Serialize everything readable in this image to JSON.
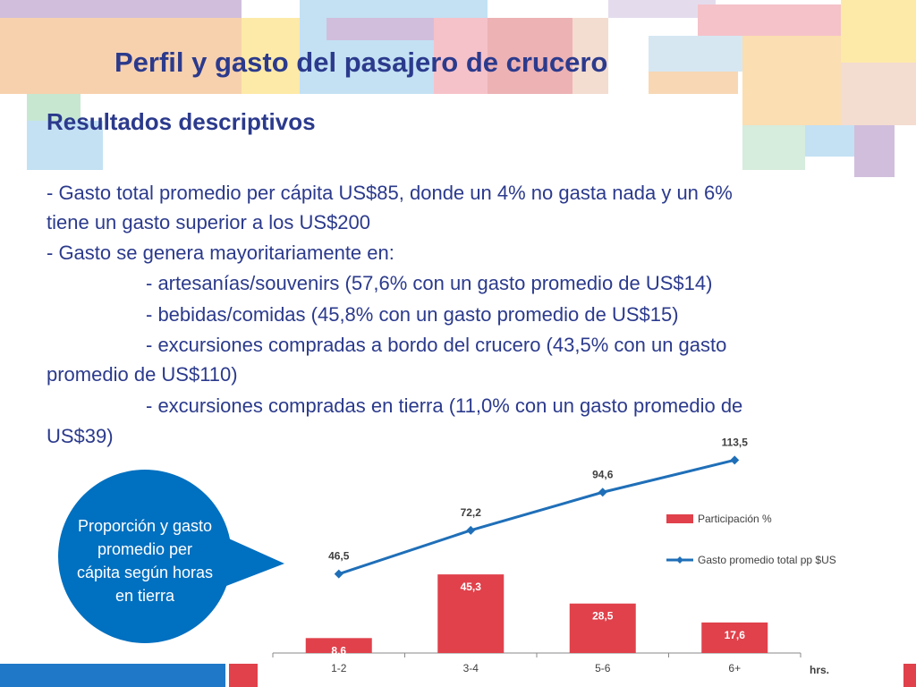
{
  "header": {
    "title": "Perfil y gasto del pasajero de crucero",
    "subtitle": "Resultados descriptivos"
  },
  "body": {
    "lines": [
      "- Gasto total promedio per cápita US$85, donde un 4% no gasta nada y un 6%",
      "tiene un gasto superior a los US$200",
      "- Gasto se genera mayoritariamente en:",
      "- artesanías/souvenirs (57,6% con un gasto promedio de US$14)",
      "- bebidas/comidas (45,8% con un gasto promedio de US$15)",
      "- excursiones compradas a bordo del crucero (43,5% con un gasto",
      "promedio de US$110)",
      "- excursiones compradas en tierra (11,0% con un gasto promedio de",
      "US$39)"
    ]
  },
  "callout": {
    "lines": [
      "Proporción y gasto",
      "promedio per",
      "cápita según horas",
      "en tierra"
    ]
  },
  "chart_data": {
    "type": "bar-line",
    "categories": [
      "1-2",
      "3-4",
      "5-6",
      "6+"
    ],
    "x_label": "hrs.",
    "series": [
      {
        "name": "Participación %",
        "type": "bar",
        "color": "#e0414b",
        "values": [
          8.6,
          45.3,
          28.5,
          17.6
        ],
        "value_labels": [
          "8,6",
          "45,3",
          "28,5",
          "17,6"
        ]
      },
      {
        "name": "Gasto promedio total pp $US",
        "type": "line",
        "axis": "y2",
        "color": "#1f6fb8",
        "values": [
          46.5,
          72.2,
          94.6,
          113.5
        ],
        "value_labels": [
          "46,5",
          "72,2",
          "94,6",
          "113,5"
        ]
      }
    ],
    "ylim": [
      0,
      50
    ],
    "y2lim": [
      0,
      120
    ]
  }
}
